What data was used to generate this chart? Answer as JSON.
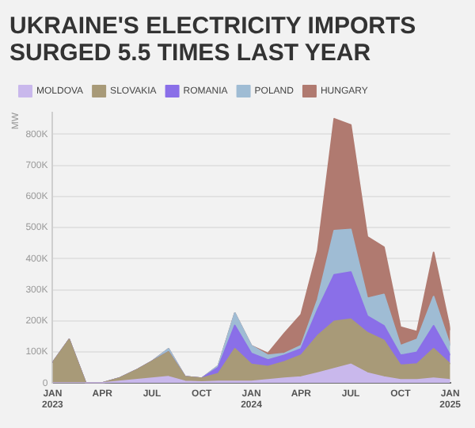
{
  "chart_data": {
    "type": "area",
    "title": "UKRAINE'S ELECTRICITY IMPORTS SURGED 5.5 TIMES LAST YEAR",
    "ylabel": "MW",
    "stacked": true,
    "legend": "top left",
    "grid": "y",
    "marker": "none",
    "x": [
      "2023-01",
      "2023-02",
      "2023-03",
      "2023-04",
      "2023-05",
      "2023-06",
      "2023-07",
      "2023-08",
      "2023-09",
      "2023-10",
      "2023-11",
      "2023-12",
      "2024-01",
      "2024-02",
      "2024-03",
      "2024-04",
      "2024-05",
      "2024-06",
      "2024-07",
      "2024-08",
      "2024-09",
      "2024-10",
      "2024-11",
      "2024-12",
      "2025-01"
    ],
    "xlim": [
      "2023-01",
      "2025-01"
    ],
    "xticks": [
      {
        "value": "2023-01",
        "label": "JAN 2023"
      },
      {
        "value": "2023-04",
        "label": "APR"
      },
      {
        "value": "2023-07",
        "label": "JUL"
      },
      {
        "value": "2023-10",
        "label": "OCT"
      },
      {
        "value": "2024-01",
        "label": "JAN 2024"
      },
      {
        "value": "2024-04",
        "label": "APR"
      },
      {
        "value": "2024-07",
        "label": "JUL"
      },
      {
        "value": "2024-10",
        "label": "OCT"
      },
      {
        "value": "2025-01",
        "label": "JAN 2025"
      }
    ],
    "ylim": [
      0,
      870000
    ],
    "yticks": [
      0,
      {
        "value": 100000,
        "label": "100K"
      },
      {
        "value": 200000,
        "label": "200K"
      },
      {
        "value": 300000,
        "label": "300K"
      },
      {
        "value": 400000,
        "label": "400K"
      },
      {
        "value": 500000,
        "label": "500K"
      },
      {
        "value": 600000,
        "label": "600K"
      },
      {
        "value": 700000,
        "label": "700K"
      },
      {
        "value": 800000,
        "label": "800K"
      }
    ],
    "series": [
      {
        "name": "MOLDOVA",
        "color": "#c9b8ec",
        "values": [
          0,
          0,
          0,
          0,
          5000,
          10000,
          15000,
          20000,
          5000,
          3000,
          5000,
          5000,
          5000,
          10000,
          15000,
          19000,
          32000,
          46000,
          60000,
          32000,
          19000,
          10000,
          10000,
          15000,
          10000
        ]
      },
      {
        "name": "SLOVAKIA",
        "color": "#a89a78",
        "values": [
          65000,
          140000,
          0,
          0,
          10000,
          30000,
          55000,
          80000,
          15000,
          12000,
          25000,
          105000,
          55000,
          43000,
          53000,
          70000,
          120000,
          152000,
          145000,
          130000,
          118000,
          47000,
          51000,
          95000,
          51000
        ]
      },
      {
        "name": "ROMANIA",
        "color": "#8a6fe8",
        "values": [
          0,
          0,
          0,
          0,
          0,
          0,
          0,
          0,
          0,
          0,
          20000,
          75000,
          35000,
          21000,
          21000,
          21000,
          84000,
          150000,
          152000,
          53000,
          47000,
          32000,
          38000,
          74000,
          28000
        ]
      },
      {
        "name": "POLAND",
        "color": "#9fbcd4",
        "values": [
          0,
          0,
          0,
          0,
          0,
          0,
          0,
          10000,
          0,
          0,
          5000,
          40000,
          25000,
          15000,
          6000,
          10000,
          32000,
          142000,
          137000,
          57000,
          101000,
          31000,
          41000,
          94000,
          31000
        ]
      },
      {
        "name": "HUNGARY",
        "color": "#b07a70",
        "values": [
          0,
          0,
          0,
          0,
          0,
          0,
          0,
          0,
          0,
          0,
          0,
          0,
          0,
          6000,
          65000,
          100000,
          157000,
          360000,
          336000,
          198000,
          152000,
          60000,
          25000,
          142000,
          50000
        ]
      }
    ]
  }
}
